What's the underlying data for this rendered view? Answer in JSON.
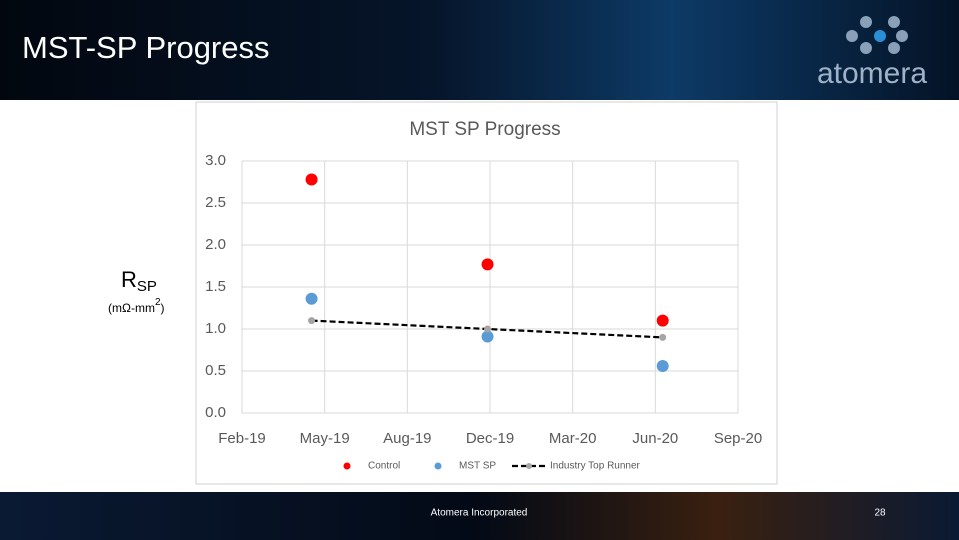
{
  "slide": {
    "title": "MST-SP Progress",
    "logo": "atomera",
    "y_label": {
      "main": "R",
      "sub": "SP",
      "unit_open": "(mΩ-mm",
      "unit_sup": "2",
      "unit_close": ")"
    },
    "footer": "Atomera Incorporated",
    "page": "28"
  },
  "chart_data": {
    "type": "scatter",
    "title": "MST SP Progress",
    "x": [
      43582,
      43797,
      44011
    ],
    "series": [
      {
        "name": "Control",
        "color": "#ff0000",
        "values": [
          2.78,
          1.77,
          1.1
        ]
      },
      {
        "name": "MST SP",
        "color": "#5b9bd5",
        "values": [
          1.36,
          0.91,
          0.56
        ]
      },
      {
        "name": "Industry Top Runner",
        "color": "#a5a5a5",
        "values": [
          1.1,
          1.0,
          0.9
        ],
        "linestyle": "dashed",
        "line_color": "#000000"
      }
    ],
    "xlim": [
      43497,
      44103
    ],
    "xticks": [
      {
        "value": 43497,
        "label": "Feb-19"
      },
      {
        "value": 43598,
        "label": "May-19"
      },
      {
        "value": 43699,
        "label": "Aug-19"
      },
      {
        "value": 43800,
        "label": "Dec-19"
      },
      {
        "value": 43901,
        "label": "Mar-20"
      },
      {
        "value": 44002,
        "label": "Jun-20"
      },
      {
        "value": 44103,
        "label": "Sep-20"
      }
    ],
    "ylim": [
      0,
      3
    ],
    "yticks": [
      {
        "value": 0,
        "label": "0.0"
      },
      {
        "value": 0.5,
        "label": "0.5"
      },
      {
        "value": 1,
        "label": "1.0"
      },
      {
        "value": 1.5,
        "label": "1.5"
      },
      {
        "value": 2,
        "label": "2.0"
      },
      {
        "value": 2.5,
        "label": "2.5"
      },
      {
        "value": 3,
        "label": "3.0"
      }
    ],
    "grid": true,
    "legend": "bottom"
  }
}
